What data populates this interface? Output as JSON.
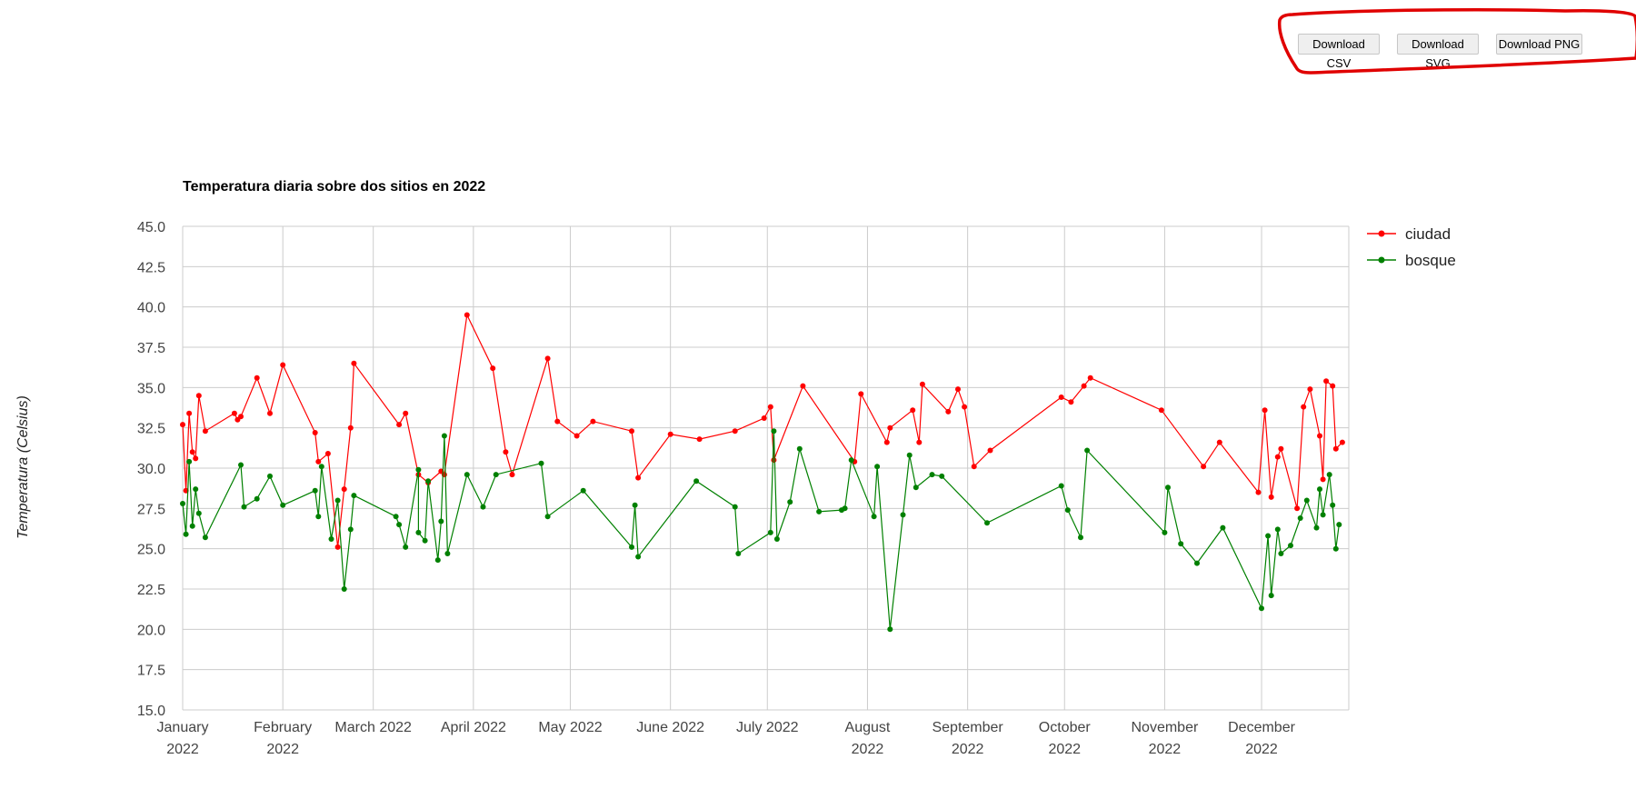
{
  "toolbar": {
    "csv_label": "Download CSV",
    "svg_label": "Download SVG",
    "png_label": "Download PNG"
  },
  "colors": {
    "ciudad": "#ff0000",
    "bosque": "#008000",
    "annotation": "#e00000",
    "grid": "#cccccc"
  },
  "chart_data": {
    "type": "line",
    "title": "Temperatura diaria sobre dos sitios en 2022",
    "ylabel": "Temperatura (Celsius)",
    "xlabel": "",
    "ylim": [
      15,
      45
    ],
    "xlim": [
      "2022-01-01",
      "2022-12-28"
    ],
    "yticks": [
      15.0,
      17.5,
      20.0,
      22.5,
      25.0,
      27.5,
      30.0,
      32.5,
      35.0,
      37.5,
      40.0,
      42.5,
      45.0
    ],
    "ytick_labels": [
      "15.0",
      "17.5",
      "20.0",
      "22.5",
      "25.0",
      "27.5",
      "30.0",
      "32.5",
      "35.0",
      "37.5",
      "40.0",
      "42.5",
      "45.0"
    ],
    "xticks": [
      {
        "date": "2022-01-01",
        "line1": "January",
        "line2": "2022"
      },
      {
        "date": "2022-02-01",
        "line1": "February",
        "line2": "2022"
      },
      {
        "date": "2022-03-01",
        "line1": "March 2022",
        "line2": ""
      },
      {
        "date": "2022-04-01",
        "line1": "April 2022",
        "line2": ""
      },
      {
        "date": "2022-05-01",
        "line1": "May 2022",
        "line2": ""
      },
      {
        "date": "2022-06-01",
        "line1": "June 2022",
        "line2": ""
      },
      {
        "date": "2022-07-01",
        "line1": "July 2022",
        "line2": ""
      },
      {
        "date": "2022-08-01",
        "line1": "August",
        "line2": "2022"
      },
      {
        "date": "2022-09-01",
        "line1": "September",
        "line2": "2022"
      },
      {
        "date": "2022-10-01",
        "line1": "October",
        "line2": "2022"
      },
      {
        "date": "2022-11-01",
        "line1": "November",
        "line2": "2022"
      },
      {
        "date": "2022-12-01",
        "line1": "December",
        "line2": "2022"
      }
    ],
    "grid": true,
    "legend_position": "top-right",
    "series": [
      {
        "name": "ciudad",
        "color": "#ff0000",
        "points": [
          [
            "2022-01-01",
            32.7
          ],
          [
            "2022-01-02",
            28.6
          ],
          [
            "2022-01-03",
            33.4
          ],
          [
            "2022-01-04",
            31.0
          ],
          [
            "2022-01-05",
            30.6
          ],
          [
            "2022-01-06",
            34.5
          ],
          [
            "2022-01-08",
            32.3
          ],
          [
            "2022-01-17",
            33.4
          ],
          [
            "2022-01-18",
            33.0
          ],
          [
            "2022-01-19",
            33.2
          ],
          [
            "2022-01-24",
            35.6
          ],
          [
            "2022-01-28",
            33.4
          ],
          [
            "2022-02-01",
            36.4
          ],
          [
            "2022-02-11",
            32.2
          ],
          [
            "2022-02-12",
            30.4
          ],
          [
            "2022-02-15",
            30.9
          ],
          [
            "2022-02-18",
            25.1
          ],
          [
            "2022-02-20",
            28.7
          ],
          [
            "2022-02-22",
            32.5
          ],
          [
            "2022-02-23",
            36.5
          ],
          [
            "2022-03-09",
            32.7
          ],
          [
            "2022-03-11",
            33.4
          ],
          [
            "2022-03-15",
            29.6
          ],
          [
            "2022-03-18",
            29.1
          ],
          [
            "2022-03-22",
            29.8
          ],
          [
            "2022-03-23",
            29.6
          ],
          [
            "2022-03-30",
            39.5
          ],
          [
            "2022-04-07",
            36.2
          ],
          [
            "2022-04-11",
            31.0
          ],
          [
            "2022-04-13",
            29.6
          ],
          [
            "2022-04-24",
            36.8
          ],
          [
            "2022-04-27",
            32.9
          ],
          [
            "2022-05-03",
            32.0
          ],
          [
            "2022-05-08",
            32.9
          ],
          [
            "2022-05-20",
            32.3
          ],
          [
            "2022-05-22",
            29.4
          ],
          [
            "2022-06-01",
            32.1
          ],
          [
            "2022-06-10",
            31.8
          ],
          [
            "2022-06-21",
            32.3
          ],
          [
            "2022-06-30",
            33.1
          ],
          [
            "2022-07-02",
            33.8
          ],
          [
            "2022-07-03",
            30.5
          ],
          [
            "2022-07-12",
            35.1
          ],
          [
            "2022-07-28",
            30.4
          ],
          [
            "2022-07-30",
            34.6
          ],
          [
            "2022-08-07",
            31.6
          ],
          [
            "2022-08-08",
            32.5
          ],
          [
            "2022-08-15",
            33.6
          ],
          [
            "2022-08-17",
            31.6
          ],
          [
            "2022-08-18",
            35.2
          ],
          [
            "2022-08-26",
            33.5
          ],
          [
            "2022-08-29",
            34.9
          ],
          [
            "2022-08-31",
            33.8
          ],
          [
            "2022-09-03",
            30.1
          ],
          [
            "2022-09-08",
            31.1
          ],
          [
            "2022-09-30",
            34.4
          ],
          [
            "2022-10-03",
            34.1
          ],
          [
            "2022-10-07",
            35.1
          ],
          [
            "2022-10-09",
            35.6
          ],
          [
            "2022-10-31",
            33.6
          ],
          [
            "2022-11-13",
            30.1
          ],
          [
            "2022-11-18",
            31.6
          ],
          [
            "2022-11-30",
            28.5
          ],
          [
            "2022-12-02",
            33.6
          ],
          [
            "2022-12-04",
            28.2
          ],
          [
            "2022-12-06",
            30.7
          ],
          [
            "2022-12-07",
            31.2
          ],
          [
            "2022-12-12",
            27.5
          ],
          [
            "2022-12-14",
            33.8
          ],
          [
            "2022-12-16",
            34.9
          ],
          [
            "2022-12-19",
            32.0
          ],
          [
            "2022-12-20",
            29.3
          ],
          [
            "2022-12-21",
            35.4
          ],
          [
            "2022-12-23",
            35.1
          ],
          [
            "2022-12-24",
            31.2
          ],
          [
            "2022-12-26",
            31.6
          ]
        ]
      },
      {
        "name": "bosque",
        "color": "#008000",
        "points": [
          [
            "2022-01-01",
            27.8
          ],
          [
            "2022-01-02",
            25.9
          ],
          [
            "2022-01-03",
            30.4
          ],
          [
            "2022-01-04",
            26.4
          ],
          [
            "2022-01-05",
            28.7
          ],
          [
            "2022-01-06",
            27.2
          ],
          [
            "2022-01-08",
            25.7
          ],
          [
            "2022-01-19",
            30.2
          ],
          [
            "2022-01-20",
            27.6
          ],
          [
            "2022-01-24",
            28.1
          ],
          [
            "2022-01-28",
            29.5
          ],
          [
            "2022-02-01",
            27.7
          ],
          [
            "2022-02-11",
            28.6
          ],
          [
            "2022-02-12",
            27.0
          ],
          [
            "2022-02-13",
            30.1
          ],
          [
            "2022-02-16",
            25.6
          ],
          [
            "2022-02-18",
            28.0
          ],
          [
            "2022-02-20",
            22.5
          ],
          [
            "2022-02-22",
            26.2
          ],
          [
            "2022-02-23",
            28.3
          ],
          [
            "2022-03-08",
            27.0
          ],
          [
            "2022-03-09",
            26.5
          ],
          [
            "2022-03-11",
            25.1
          ],
          [
            "2022-03-15",
            29.9
          ],
          [
            "2022-03-15",
            26.0
          ],
          [
            "2022-03-17",
            25.5
          ],
          [
            "2022-03-18",
            29.2
          ],
          [
            "2022-03-21",
            24.3
          ],
          [
            "2022-03-22",
            26.7
          ],
          [
            "2022-03-23",
            32.0
          ],
          [
            "2022-03-24",
            24.7
          ],
          [
            "2022-03-30",
            29.6
          ],
          [
            "2022-04-04",
            27.6
          ],
          [
            "2022-04-08",
            29.6
          ],
          [
            "2022-04-22",
            30.3
          ],
          [
            "2022-04-24",
            27.0
          ],
          [
            "2022-05-05",
            28.6
          ],
          [
            "2022-05-20",
            25.1
          ],
          [
            "2022-05-21",
            27.7
          ],
          [
            "2022-05-22",
            24.5
          ],
          [
            "2022-06-09",
            29.2
          ],
          [
            "2022-06-21",
            27.6
          ],
          [
            "2022-06-22",
            24.7
          ],
          [
            "2022-07-02",
            26.0
          ],
          [
            "2022-07-03",
            32.3
          ],
          [
            "2022-07-04",
            25.6
          ],
          [
            "2022-07-08",
            27.9
          ],
          [
            "2022-07-11",
            31.2
          ],
          [
            "2022-07-17",
            27.3
          ],
          [
            "2022-07-24",
            27.4
          ],
          [
            "2022-07-25",
            27.5
          ],
          [
            "2022-07-27",
            30.5
          ],
          [
            "2022-08-03",
            27.0
          ],
          [
            "2022-08-04",
            30.1
          ],
          [
            "2022-08-08",
            20.0
          ],
          [
            "2022-08-12",
            27.1
          ],
          [
            "2022-08-14",
            30.8
          ],
          [
            "2022-08-16",
            28.8
          ],
          [
            "2022-08-21",
            29.6
          ],
          [
            "2022-08-24",
            29.5
          ],
          [
            "2022-09-07",
            26.6
          ],
          [
            "2022-09-30",
            28.9
          ],
          [
            "2022-10-02",
            27.4
          ],
          [
            "2022-10-06",
            25.7
          ],
          [
            "2022-10-08",
            31.1
          ],
          [
            "2022-11-01",
            26.0
          ],
          [
            "2022-11-02",
            28.8
          ],
          [
            "2022-11-06",
            25.3
          ],
          [
            "2022-11-11",
            24.1
          ],
          [
            "2022-11-19",
            26.3
          ],
          [
            "2022-12-01",
            21.3
          ],
          [
            "2022-12-03",
            25.8
          ],
          [
            "2022-12-04",
            22.1
          ],
          [
            "2022-12-06",
            26.2
          ],
          [
            "2022-12-07",
            24.7
          ],
          [
            "2022-12-10",
            25.2
          ],
          [
            "2022-12-13",
            26.9
          ],
          [
            "2022-12-15",
            28.0
          ],
          [
            "2022-12-18",
            26.3
          ],
          [
            "2022-12-19",
            28.7
          ],
          [
            "2022-12-20",
            27.1
          ],
          [
            "2022-12-22",
            29.6
          ],
          [
            "2022-12-23",
            27.7
          ],
          [
            "2022-12-24",
            25.0
          ],
          [
            "2022-12-25",
            26.5
          ]
        ]
      }
    ]
  }
}
